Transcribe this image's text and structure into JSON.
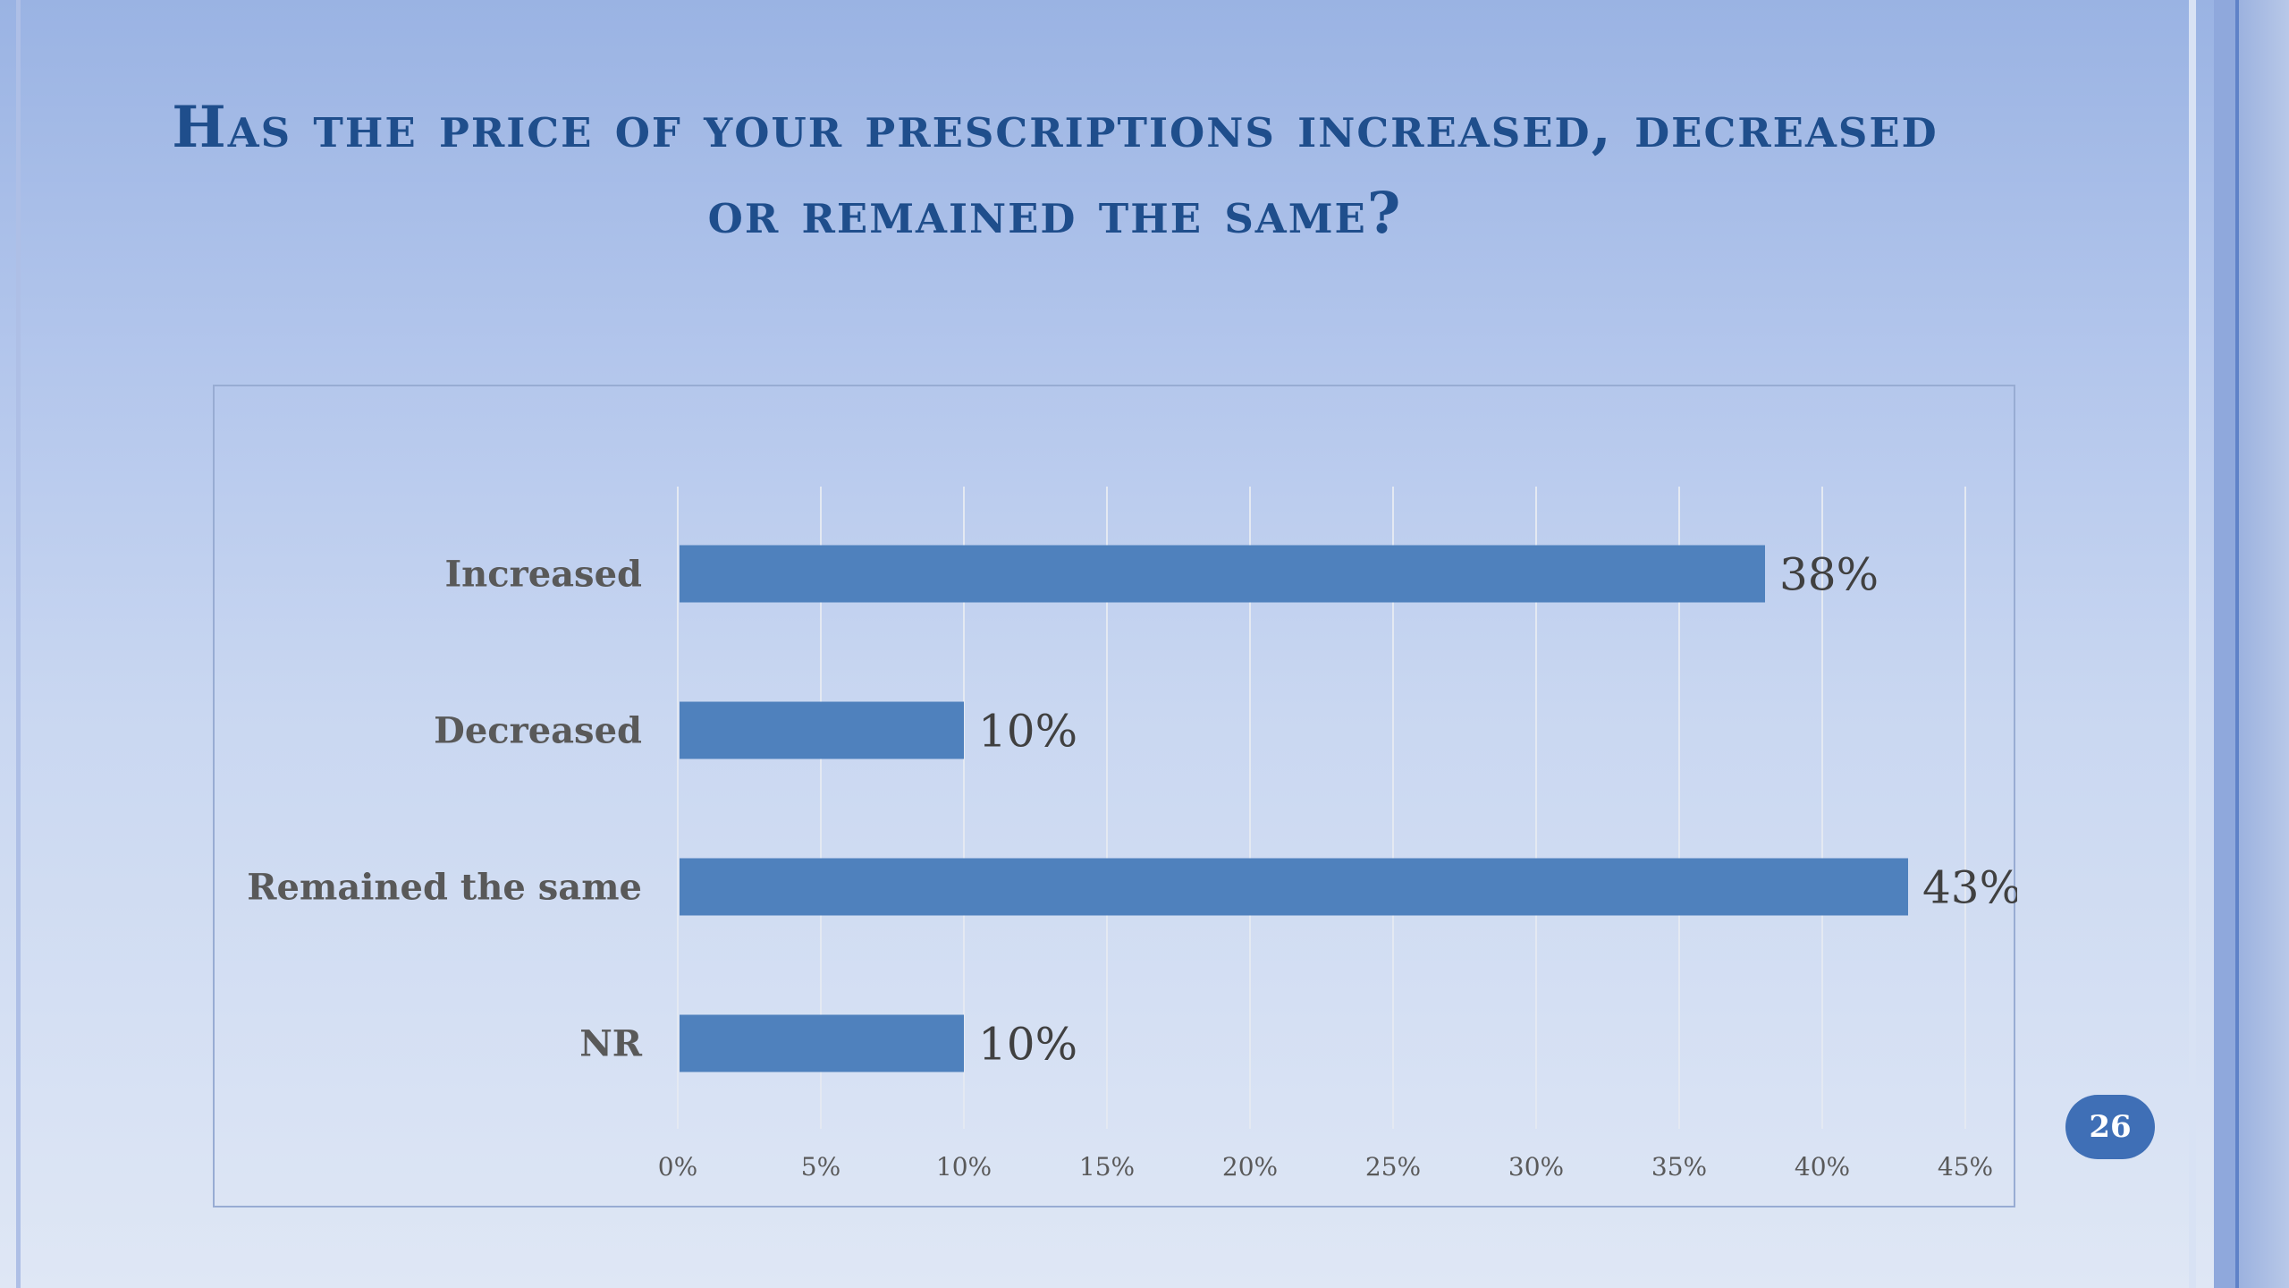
{
  "slide": {
    "title": "Has the price of your prescriptions increased, decreased or remained the same?",
    "page_number": "26"
  },
  "colors": {
    "bar": "#4f81bd",
    "title": "#1f4e8c",
    "label_text": "#595959",
    "gridline": "#e4e9f2",
    "badge": "#3f6fb6"
  },
  "chart_data": {
    "type": "bar",
    "orientation": "horizontal",
    "categories": [
      "Increased",
      "Decreased",
      "Remained the same",
      "NR"
    ],
    "values": [
      38,
      10,
      43,
      10
    ],
    "data_labels": [
      "38%",
      "10%",
      "43%",
      "10%"
    ],
    "xlim": [
      0,
      45
    ],
    "x_ticks": [
      "0%",
      "5%",
      "10%",
      "15%",
      "20%",
      "25%",
      "30%",
      "35%",
      "40%",
      "45%"
    ],
    "x_tick_values": [
      0,
      5,
      10,
      15,
      20,
      25,
      30,
      35,
      40,
      45
    ],
    "grid": true,
    "legend": "none",
    "title": "",
    "xlabel": "",
    "ylabel": ""
  }
}
